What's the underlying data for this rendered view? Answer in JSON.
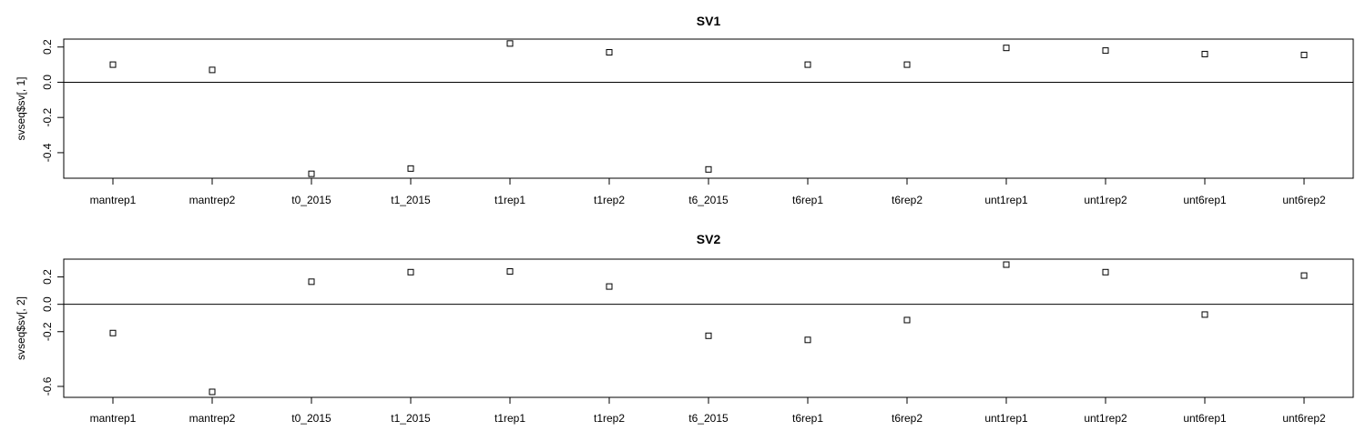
{
  "chart_data": [
    {
      "type": "scatter",
      "title": "SV1",
      "xlabel": "",
      "ylabel": "svseq$sv[, 1]",
      "categories": [
        "mantrep1",
        "mantrep2",
        "t0_2015",
        "t1_2015",
        "t1rep1",
        "t1rep2",
        "t6_2015",
        "t6rep1",
        "t6rep2",
        "unt1rep1",
        "unt1rep2",
        "unt6rep1",
        "unt6rep2"
      ],
      "values": [
        0.1,
        0.07,
        -0.52,
        -0.49,
        0.22,
        0.17,
        -0.495,
        0.1,
        0.1,
        0.195,
        0.18,
        0.16,
        0.155
      ],
      "yticks": [
        0.2,
        0.0,
        -0.2,
        -0.4
      ],
      "ytick_labels": [
        "0.2",
        "0.0",
        "-0.2",
        "-0.4"
      ],
      "ylim": [
        -0.545,
        0.245
      ],
      "reference_line": 0.0,
      "grid": false,
      "marker": "open-square"
    },
    {
      "type": "scatter",
      "title": "SV2",
      "xlabel": "",
      "ylabel": "svseq$sv[, 2]",
      "categories": [
        "mantrep1",
        "mantrep2",
        "t0_2015",
        "t1_2015",
        "t1rep1",
        "t1rep2",
        "t6_2015",
        "t6rep1",
        "t6rep2",
        "unt1rep1",
        "unt1rep2",
        "unt6rep1",
        "unt6rep2"
      ],
      "values": [
        -0.21,
        -0.64,
        0.165,
        0.235,
        0.24,
        0.13,
        -0.23,
        -0.26,
        -0.115,
        0.29,
        0.235,
        -0.075,
        0.21
      ],
      "yticks": [
        0.2,
        0.0,
        -0.2,
        -0.6
      ],
      "ytick_labels": [
        "0.2",
        "0.0",
        "-0.2",
        "-0.6"
      ],
      "ylim": [
        -0.68,
        0.33
      ],
      "reference_line": 0.0,
      "grid": false,
      "marker": "open-square"
    }
  ]
}
